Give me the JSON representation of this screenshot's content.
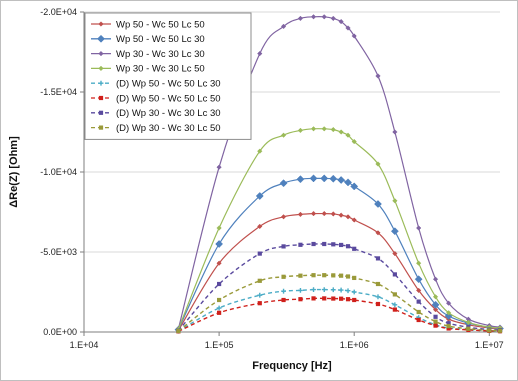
{
  "chart_data": {
    "type": "line",
    "title": "",
    "xlabel": "Frequency [Hz]",
    "ylabel": "ΔRe(Z) [Ohm]",
    "x_scale": "log",
    "xlim": [
      10000,
      12000000
    ],
    "ylim": [
      0,
      -20000
    ],
    "y_inverted": true,
    "x_ticks": [
      10000,
      100000,
      1000000,
      10000000
    ],
    "x_tick_labels": [
      "1.E+04",
      "1.E+05",
      "1.E+06",
      "1.E+07"
    ],
    "y_ticks": [
      0,
      -5000,
      -10000,
      -15000,
      -20000
    ],
    "y_tick_labels": [
      "0.0E+00",
      "-5.0E+03",
      "-1.0E+04",
      "-1.5E+04",
      "-2.0E+04"
    ],
    "grid": "horizontal",
    "legend_position": "top-left",
    "x": [
      50000,
      100000,
      200000,
      300000,
      400000,
      500000,
      600000,
      700000,
      800000,
      900000,
      1000000,
      1500000,
      2000000,
      3000000,
      4000000,
      5000000,
      7000000,
      10000000,
      12000000
    ],
    "series": [
      {
        "name": "Wp 50 - Wc 50  Lc 50",
        "color": "#c0504d",
        "dash": "solid",
        "marker": "diamond",
        "values": [
          -100,
          -4300,
          -6600,
          -7200,
          -7350,
          -7400,
          -7400,
          -7380,
          -7300,
          -7200,
          -7000,
          -6200,
          -4900,
          -2600,
          -1400,
          -800,
          -450,
          -250,
          -180
        ]
      },
      {
        "name": "Wp 50 - Wc 50  Lc 30",
        "color": "#4f81bd",
        "dash": "solid",
        "marker": "diamond-large",
        "values": [
          -150,
          -5500,
          -8500,
          -9300,
          -9550,
          -9600,
          -9600,
          -9580,
          -9500,
          -9350,
          -9100,
          -8000,
          -6300,
          -3300,
          -1700,
          -1000,
          -550,
          -300,
          -220
        ]
      },
      {
        "name": "Wp 30 - Wc 30  Lc 30",
        "color": "#8064a2",
        "dash": "solid",
        "marker": "diamond",
        "values": [
          -200,
          -10300,
          -17400,
          -19100,
          -19600,
          -19700,
          -19700,
          -19600,
          -19400,
          -19000,
          -18500,
          -16000,
          -12500,
          -6500,
          -3300,
          -1800,
          -800,
          -400,
          -300
        ]
      },
      {
        "name": "Wp 30 - Wc 30  Lc 50",
        "color": "#9bbb59",
        "dash": "solid",
        "marker": "diamond",
        "values": [
          -180,
          -6500,
          -11300,
          -12300,
          -12600,
          -12700,
          -12700,
          -12650,
          -12500,
          -12300,
          -11900,
          -10500,
          -8200,
          -4300,
          -2200,
          -1200,
          -600,
          -300,
          -250
        ]
      },
      {
        "name": "(D) Wp 50 - Wc 50  Lc 30",
        "color": "#4bacc6",
        "dash": "dashed",
        "marker": "cross",
        "values": [
          -50,
          -1500,
          -2300,
          -2550,
          -2600,
          -2650,
          -2650,
          -2640,
          -2620,
          -2580,
          -2500,
          -2200,
          -1700,
          -900,
          -450,
          -250,
          -150,
          -80,
          -60
        ]
      },
      {
        "name": "(D) Wp 50 - Wc 50  Lc 50",
        "color": "#d0201b",
        "dash": "dashed",
        "marker": "square",
        "values": [
          -40,
          -1200,
          -1800,
          -2000,
          -2050,
          -2100,
          -2100,
          -2090,
          -2080,
          -2050,
          -2000,
          -1750,
          -1400,
          -750,
          -400,
          -220,
          -130,
          -70,
          -50
        ]
      },
      {
        "name": "(D) Wp 30 - Wc 30  Lc 30",
        "color": "#5a4a9e",
        "dash": "dashed",
        "marker": "square",
        "values": [
          -80,
          -3000,
          -4900,
          -5350,
          -5450,
          -5500,
          -5500,
          -5480,
          -5440,
          -5360,
          -5200,
          -4600,
          -3600,
          -1900,
          -950,
          -550,
          -300,
          -150,
          -120
        ]
      },
      {
        "name": "(D) Wp 30 - Wc 30  Lc 50",
        "color": "#9a9a3a",
        "dash": "dashed",
        "marker": "square",
        "values": [
          -60,
          -2000,
          -3200,
          -3450,
          -3520,
          -3550,
          -3550,
          -3540,
          -3520,
          -3470,
          -3380,
          -3000,
          -2350,
          -1250,
          -650,
          -370,
          -200,
          -100,
          -80
        ]
      }
    ]
  }
}
